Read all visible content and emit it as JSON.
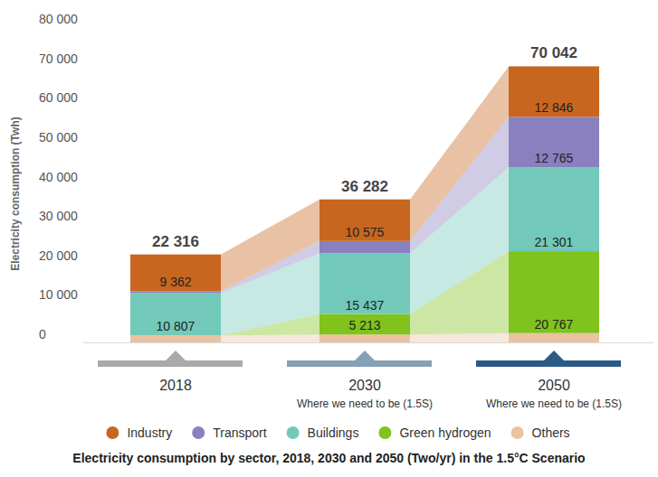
{
  "chart_data": {
    "type": "bar",
    "stacked": true,
    "data_labels": true,
    "legend": "bottom",
    "grid": false,
    "title": "Electricity consumption by sector, 2018, 2030 and 2050 (Two/yr) in the 1.5°C Scenario",
    "y_label": "Electricity consumption (Twh)",
    "categories": [
      "2018",
      "2030",
      "2050"
    ],
    "annotations": [
      {
        "x": "2030",
        "text": "Where we need to be (1.5S)"
      },
      {
        "x": "2050",
        "text": "Where we need to be (1.5S)"
      }
    ],
    "series": [
      {
        "name": "Industry",
        "color": "#c8661f",
        "values": [
          9362,
          10575,
          12846
        ],
        "value_labels": [
          "9 362",
          "10 575",
          "12 846"
        ]
      },
      {
        "name": "Transport",
        "color": "#8a80c0",
        "values": [
          400,
          3057,
          12765
        ],
        "value_labels": [
          null,
          null,
          "12 765"
        ]
      },
      {
        "name": "Buildings",
        "color": "#72c9b9",
        "values": [
          10807,
          15437,
          21301
        ],
        "value_labels": [
          "10 807",
          "15 437",
          "21 301"
        ]
      },
      {
        "name": "Green hydrogen",
        "color": "#7fc31c",
        "values": [
          0,
          5213,
          20767
        ],
        "value_labels": [
          null,
          "5 213",
          "20 767"
        ]
      },
      {
        "name": "Others",
        "color": "#e9c3a2",
        "values": [
          1747,
          2000,
          2363
        ]
      }
    ],
    "totals": [
      22316,
      36282,
      70042
    ],
    "total_labels": [
      "22 316",
      "36 282",
      "70 042"
    ],
    "ylim": [
      0,
      80000
    ],
    "yticks": [
      0,
      {
        "value": 10000,
        "label": "10 000"
      },
      {
        "value": 20000,
        "label": "20 000"
      },
      {
        "value": 30000,
        "label": "30 000"
      },
      {
        "value": 40000,
        "label": "40 000"
      },
      {
        "value": 50000,
        "label": "50 000"
      },
      {
        "value": 60000,
        "label": "60 000"
      },
      {
        "value": 70000,
        "label": "70 000"
      },
      {
        "value": 80000,
        "label": "80 000"
      }
    ]
  }
}
